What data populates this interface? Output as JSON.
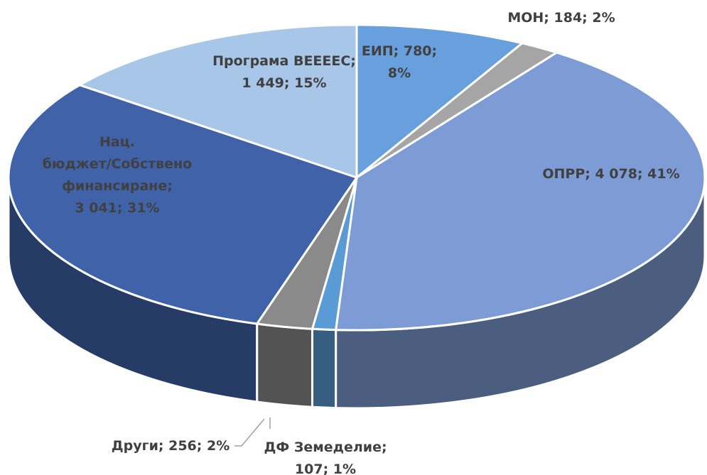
{
  "chart_data": {
    "type": "pie3d",
    "values": [
      780,
      184,
      4078,
      107,
      256,
      3041,
      1449
    ],
    "value_labels": [
      [
        "ЕИП; 780;",
        "8%"
      ],
      [
        "МОН; 184; 2%"
      ],
      [
        "ОПРР; 4 078; 41%"
      ],
      [
        "ДФ Земеделие;",
        "107; 1%"
      ],
      [
        "Други; 256; 2%"
      ],
      [
        "Нац.",
        "бюджет/Собствено",
        "финансиране;",
        "3 041; 31%"
      ],
      [
        "Програма ВЕЕЕЕС;",
        "1 449; 15%"
      ]
    ],
    "colors": [
      "#67a0dc",
      "#a5a5a5",
      "#7d9cd6",
      "#5b9bd5",
      "#8a8a8a",
      "#3f62a8",
      "#a8c6e8"
    ]
  }
}
